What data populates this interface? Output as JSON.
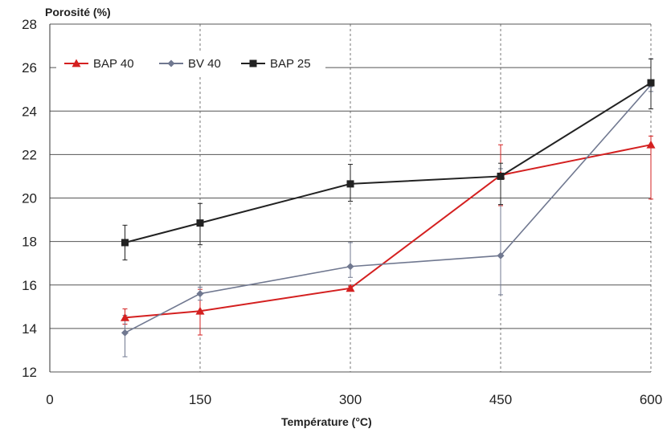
{
  "chart_data": {
    "type": "line",
    "ylabel": "Porosité (%)",
    "xlabel": "Température (°C)",
    "xlim": [
      0,
      600
    ],
    "ylim": [
      12,
      28
    ],
    "x_ticks": [
      "0",
      "150",
      "300",
      "450",
      "600"
    ],
    "y_ticks": [
      "12",
      "14",
      "16",
      "18",
      "20",
      "22",
      "24",
      "26",
      "28"
    ],
    "legend_position": "top-left",
    "series": [
      {
        "name": "BAP 40",
        "color": "#d42020",
        "marker": "triangle",
        "x": [
          75,
          150,
          300,
          450,
          600
        ],
        "y": [
          14.5,
          14.8,
          15.85,
          21.05,
          22.45
        ],
        "err_low": [
          0.3,
          1.1,
          0.0,
          1.4,
          2.5
        ],
        "err_high": [
          0.4,
          1.0,
          0.1,
          1.4,
          0.4
        ]
      },
      {
        "name": "BV 40",
        "color": "#707890",
        "marker": "diamond",
        "x": [
          75,
          150,
          300,
          450,
          600
        ],
        "y": [
          13.8,
          15.6,
          16.85,
          17.35,
          25.2
        ],
        "err_low": [
          1.1,
          0.3,
          0.5,
          1.8,
          0.3
        ],
        "err_high": [
          0.8,
          0.3,
          1.1,
          4.0,
          1.2
        ]
      },
      {
        "name": "BAP 25",
        "color": "#222222",
        "marker": "square",
        "x": [
          75,
          150,
          300,
          450,
          600
        ],
        "y": [
          17.95,
          18.85,
          20.65,
          21.0,
          25.3
        ],
        "err_low": [
          0.8,
          1.0,
          0.8,
          1.3,
          1.2
        ],
        "err_high": [
          0.8,
          0.9,
          0.9,
          0.6,
          1.1
        ]
      }
    ]
  }
}
